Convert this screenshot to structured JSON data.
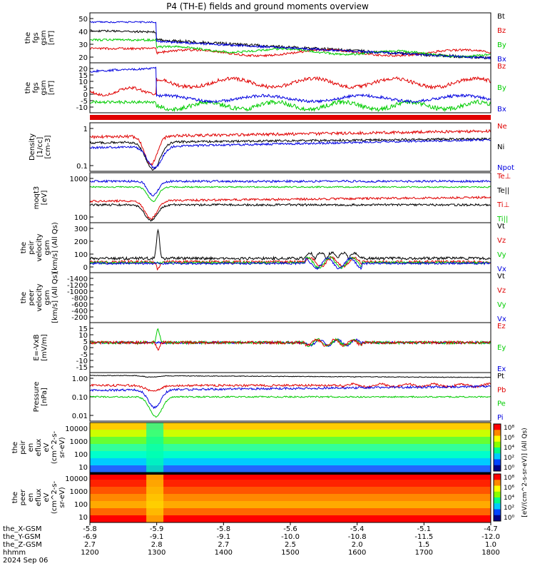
{
  "title": "P4 (TH-E) fields and ground moments overview",
  "colors": {
    "black": "#000000",
    "red": "#e00000",
    "green": "#00cc00",
    "blue": "#0000e0"
  },
  "chart_data": {
    "type": "line",
    "time_ticks": [
      "1200",
      "1300",
      "1400",
      "1500",
      "1600",
      "1700",
      "1800"
    ],
    "time_range": [
      "12:00",
      "18:00"
    ],
    "x_axis_rows": [
      {
        "label": "the_X-GSM",
        "values": [
          "-5.8",
          "-5.9",
          "-5.8",
          "-5.6",
          "-5.4",
          "-5.1",
          "-4.7"
        ]
      },
      {
        "label": "the_Y-GSM",
        "values": [
          "-6.9",
          "-9.1",
          "-9.1",
          "-10.0",
          "-10.8",
          "-11.5",
          "-12.0"
        ]
      },
      {
        "label": "the_Z-GSM",
        "values": [
          "2.7",
          "2.8",
          "2.7",
          "2.5",
          "2.0",
          "1.5",
          "1.0"
        ]
      },
      {
        "label": "hhmm",
        "values": [
          "1200",
          "1300",
          "1400",
          "1500",
          "1600",
          "1700",
          "1800"
        ]
      }
    ],
    "date_label": "2024 Sep 06",
    "panels": [
      {
        "id": "fgs-btot",
        "ylabel": [
          "the",
          "fgs",
          "gsm",
          "[nT]"
        ],
        "ticks": [
          "20",
          "30",
          "40",
          "50"
        ],
        "ylim": [
          10,
          60
        ],
        "legend": [
          {
            "name": "Bt",
            "color": "black"
          },
          {
            "name": "Bz",
            "color": "red"
          },
          {
            "name": "By",
            "color": "green"
          },
          {
            "name": "Bx",
            "color": "blue"
          }
        ]
      },
      {
        "id": "fgs-comp",
        "ylabel": [
          "the",
          "fgs",
          "gsm",
          "[nT]"
        ],
        "ticks": [
          "-10",
          "-5",
          "0",
          "5",
          "10",
          "15",
          "20"
        ],
        "ylim": [
          -15,
          22
        ],
        "legend": [
          {
            "name": "Bz",
            "color": "red"
          },
          {
            "name": "By",
            "color": "green"
          },
          {
            "name": "Bx",
            "color": "blue"
          }
        ]
      },
      {
        "id": "density",
        "ylabel": [
          "Density",
          "[1/cc]",
          "[cm-3]"
        ],
        "ticks": [
          "0.1",
          "1"
        ],
        "scale": "log",
        "legend": [
          {
            "name": "Ne",
            "color": "red"
          },
          {
            "name": "Ni",
            "color": "black"
          },
          {
            "name": "Npot",
            "color": "blue"
          }
        ]
      },
      {
        "id": "temperature",
        "ylabel": [
          "moqt3",
          "[eV]"
        ],
        "ticks": [
          "100",
          "1000"
        ],
        "scale": "log",
        "legend": [
          {
            "name": "Te⊥",
            "color": "red"
          },
          {
            "name": "Te||",
            "color": "black"
          },
          {
            "name": "Ti⊥",
            "color": "red"
          },
          {
            "name": "Ti||",
            "color": "green"
          }
        ]
      },
      {
        "id": "peir-velocity",
        "ylabel": [
          "the",
          "peir",
          "velocity",
          "gsm",
          "[km/s] (All Qs)"
        ],
        "ticks": [
          "0",
          "100",
          "200",
          "300"
        ],
        "ylim": [
          -20,
          360
        ],
        "legend": [
          {
            "name": "Vt",
            "color": "black"
          },
          {
            "name": "Vz",
            "color": "red"
          },
          {
            "name": "Vy",
            "color": "green"
          },
          {
            "name": "Vx",
            "color": "blue"
          }
        ]
      },
      {
        "id": "peer-velocity",
        "ylabel": [
          "the",
          "peer",
          "velocity",
          "gsm",
          "[km/s] (All Qs)"
        ],
        "ticks": [
          "-200",
          "-400",
          "-600",
          "-800",
          "-1000",
          "-1200",
          "-1400"
        ],
        "ylim": [
          -1500,
          -100
        ],
        "legend": [
          {
            "name": "Vt",
            "color": "black"
          },
          {
            "name": "Vz",
            "color": "red"
          },
          {
            "name": "Vy",
            "color": "green"
          },
          {
            "name": "Vx",
            "color": "blue"
          }
        ]
      },
      {
        "id": "efield",
        "ylabel": [
          "E=-VxB",
          "[mV/m]"
        ],
        "ticks": [
          "-15",
          "-10",
          "-5",
          "0",
          "5",
          "10",
          "15"
        ],
        "ylim": [
          -16,
          18
        ],
        "legend": [
          {
            "name": "Ez",
            "color": "red"
          },
          {
            "name": "Ey",
            "color": "green"
          },
          {
            "name": "Ex",
            "color": "blue"
          }
        ]
      },
      {
        "id": "pressure",
        "ylabel": [
          "Pressure",
          "[nPa]"
        ],
        "ticks": [
          "0.01",
          "0.10",
          "1.00"
        ],
        "scale": "log",
        "legend": [
          {
            "name": "Pt",
            "color": "black"
          },
          {
            "name": "Pb",
            "color": "red"
          },
          {
            "name": "Pe",
            "color": "green"
          },
          {
            "name": "Pi",
            "color": "blue"
          }
        ]
      },
      {
        "id": "peir-spec",
        "ylabel": [
          "the",
          "peir",
          "en",
          "eflux",
          "eV",
          "(cm^2-s-",
          "sr-eV)"
        ],
        "ticks": [
          "10",
          "100",
          "1000",
          "10000"
        ],
        "scale": "log"
      },
      {
        "id": "peer-spec",
        "ylabel": [
          "the",
          "peer",
          "en",
          "eflux",
          "eV",
          "(cm^2-s-",
          "sr-eV)"
        ],
        "ticks": [
          "10",
          "100",
          "1000",
          "10000"
        ],
        "scale": "log"
      }
    ],
    "colorbar": {
      "label": "[eV/(cm^2-s-sr-eV)] (All Qs)",
      "ticks_top": [
        "10⁸",
        "10⁶",
        "10⁴",
        "10²",
        "10⁰"
      ],
      "ticks_bottom": [
        "10⁸",
        "10⁶",
        "10⁴",
        "10²",
        "10⁰"
      ]
    }
  }
}
